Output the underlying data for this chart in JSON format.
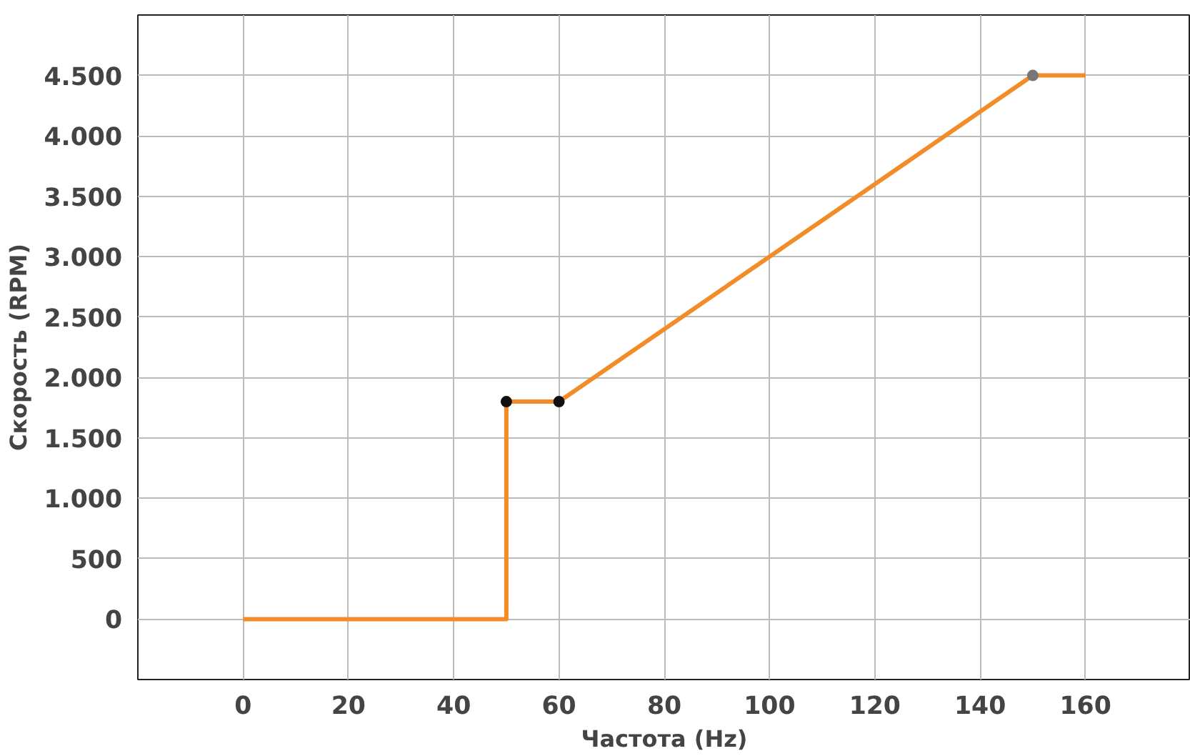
{
  "chart_data": {
    "type": "line",
    "xlabel": "Частота (Hz)",
    "ylabel": "Скорость (RPM)",
    "series": [
      {
        "color": "#f28c28",
        "x": [
          0,
          50,
          50,
          60,
          150,
          160
        ],
        "values": [
          0,
          0,
          1800,
          1800,
          4500,
          4500
        ]
      },
      {
        "type": "scatter",
        "marker": "circle",
        "colors": [
          "#111111",
          "#111111",
          "#777777"
        ],
        "x": [
          50,
          60,
          150
        ],
        "values": [
          1800,
          1800,
          4500
        ]
      }
    ],
    "xlim": [
      -20,
      180
    ],
    "xticks": [
      0,
      20,
      40,
      60,
      80,
      100,
      120,
      140,
      160
    ],
    "ylim": [
      -500,
      5000
    ],
    "yticks": [
      0,
      500,
      {
        "value": 1000,
        "label": "1.000"
      },
      {
        "value": 1500,
        "label": "1.500"
      },
      {
        "value": 2000,
        "label": "2.000"
      },
      {
        "value": 2500,
        "label": "2.500"
      },
      {
        "value": 3000,
        "label": "3.000"
      },
      {
        "value": 3500,
        "label": "3.500"
      },
      {
        "value": 4000,
        "label": "4.000"
      },
      {
        "value": 4500,
        "label": "4.500"
      }
    ],
    "grid": true
  }
}
